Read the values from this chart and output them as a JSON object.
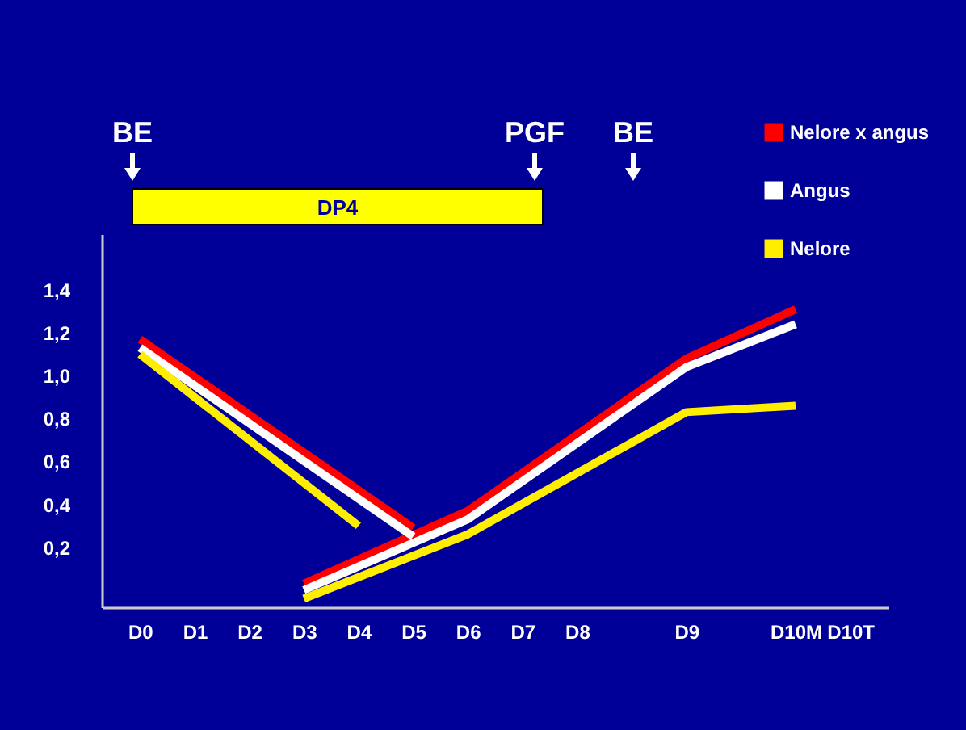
{
  "chart_data": {
    "type": "line",
    "categories": [
      "D0",
      "D1",
      "D2",
      "D3",
      "D4",
      "D5",
      "D6",
      "D7",
      "D8",
      null,
      "D9",
      null,
      "D10M",
      "D10T"
    ],
    "series": [
      {
        "name": "Nelore x angus",
        "color": "#ff0000",
        "values": [
          null,
          null,
          null,
          0.03,
          null,
          null,
          0.37,
          null,
          null,
          null,
          1.08,
          null,
          1.31,
          null
        ]
      },
      {
        "name": "Angus",
        "color": "#ffffff",
        "values": [
          null,
          null,
          null,
          0.0,
          null,
          null,
          0.33,
          null,
          null,
          null,
          1.04,
          null,
          1.24,
          null
        ]
      },
      {
        "name": "Nelore",
        "color": "#ffee00",
        "values": [
          null,
          null,
          null,
          -0.04,
          null,
          null,
          0.26,
          null,
          null,
          null,
          0.83,
          null,
          0.86,
          null
        ]
      },
      {
        "color": "#ff0000",
        "values": [
          1.17,
          null,
          null,
          null,
          null,
          0.29,
          null,
          null,
          null,
          null,
          null,
          null,
          null,
          null
        ]
      },
      {
        "color": "#ffffff",
        "values": [
          1.13,
          null,
          null,
          null,
          null,
          0.25,
          null,
          null,
          null,
          null,
          null,
          null,
          null,
          null
        ]
      },
      {
        "color": "#ffee00",
        "values": [
          1.1,
          null,
          null,
          null,
          0.3,
          null,
          null,
          null,
          null,
          null,
          null,
          null,
          null,
          null
        ]
      }
    ],
    "ylim": [
      -0.08,
      1.66
    ],
    "yticks": [
      {
        "value": 0.2,
        "label": "0,2"
      },
      {
        "value": 0.4,
        "label": "0,4"
      },
      {
        "value": 0.6,
        "label": "0,6"
      },
      {
        "value": 0.8,
        "label": "0,8"
      },
      {
        "value": 1.0,
        "label": "1,0"
      },
      {
        "value": 1.2,
        "label": "1,2"
      },
      {
        "value": 1.4,
        "label": "1,4"
      }
    ],
    "annotations": [
      "BE",
      "PGF",
      "BE",
      "DP4"
    ],
    "legend": "top right",
    "grid": false,
    "marker": "none",
    "line_style": "solid"
  }
}
